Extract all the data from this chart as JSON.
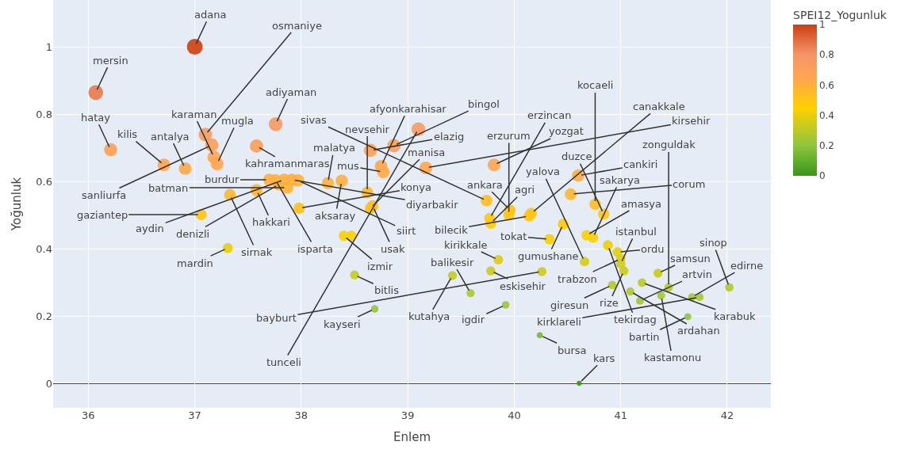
{
  "chart_data": {
    "type": "bubble",
    "xlabel": "Enlem",
    "ylabel": "Yoğunluk",
    "clabel": "SPEI12_Yogunluk",
    "xlim": [
      35.67,
      42.41
    ],
    "xticks": [
      36,
      37,
      38,
      39,
      40,
      41,
      42
    ],
    "ylim": [
      -0.073,
      1.139
    ],
    "yticks": [
      0,
      0.2,
      0.4,
      0.6,
      0.8,
      1
    ],
    "clim": [
      0,
      1
    ],
    "cticks": [
      0,
      0.2,
      0.4,
      0.6,
      0.8,
      1
    ],
    "grid": true,
    "ref_lines": [
      {
        "axis": "y",
        "value": 0,
        "color": "#444444"
      }
    ],
    "x": [
      37.0,
      36.07,
      36.21,
      36.71,
      36.91,
      37.1,
      37.16,
      37.18,
      37.21,
      37.06,
      37.33,
      37.31,
      37.58,
      37.76,
      37.58,
      37.7,
      37.76,
      37.79,
      37.84,
      37.87,
      37.91,
      37.97,
      37.98,
      38.25,
      38.38,
      38.65,
      38.75,
      38.77,
      38.87,
      39.1,
      39.17,
      38.62,
      38.67,
      38.65,
      38.4,
      38.47,
      38.5,
      38.69,
      39.42,
      39.59,
      39.78,
      39.85,
      39.92,
      39.81,
      39.74,
      39.77,
      39.78,
      39.96,
      39.95,
      40.14,
      40.16,
      40.24,
      40.26,
      40.33,
      40.46,
      40.53,
      40.6,
      40.61,
      40.76,
      40.84,
      40.74,
      40.68,
      40.66,
      40.88,
      40.97,
      41.0,
      41.0,
      41.03,
      40.92,
      41.09,
      41.18,
      41.2,
      41.35,
      41.38,
      41.45,
      41.63,
      41.67,
      41.74,
      42.02
    ],
    "values": [
      1.0,
      0.864,
      0.694,
      0.649,
      0.638,
      0.739,
      0.708,
      0.672,
      0.652,
      0.501,
      0.56,
      0.402,
      0.705,
      0.77,
      0.574,
      0.605,
      0.603,
      0.591,
      0.605,
      0.581,
      0.605,
      0.603,
      0.52,
      0.595,
      0.602,
      0.692,
      0.645,
      0.628,
      0.706,
      0.755,
      0.64,
      0.567,
      0.527,
      0.52,
      0.438,
      0.438,
      0.322,
      0.221,
      0.32,
      0.268,
      0.334,
      0.367,
      0.233,
      0.649,
      0.543,
      0.49,
      0.475,
      0.515,
      0.5,
      0.497,
      0.505,
      0.143,
      0.332,
      0.428,
      0.473,
      0.562,
      0.617,
      0.0,
      0.532,
      0.503,
      0.433,
      0.44,
      0.362,
      0.41,
      0.39,
      0.37,
      0.355,
      0.334,
      0.292,
      0.273,
      0.245,
      0.299,
      0.327,
      0.261,
      0.285,
      0.198,
      0.256,
      0.256,
      0.285
    ],
    "cvalues": [
      1.0,
      0.864,
      0.694,
      0.649,
      0.638,
      0.739,
      0.708,
      0.672,
      0.652,
      0.501,
      0.56,
      0.402,
      0.705,
      0.77,
      0.574,
      0.605,
      0.603,
      0.591,
      0.605,
      0.581,
      0.605,
      0.603,
      0.52,
      0.595,
      0.602,
      0.692,
      0.645,
      0.628,
      0.706,
      0.755,
      0.64,
      0.567,
      0.527,
      0.52,
      0.438,
      0.438,
      0.322,
      0.221,
      0.32,
      0.268,
      0.334,
      0.367,
      0.233,
      0.649,
      0.543,
      0.49,
      0.475,
      0.515,
      0.5,
      0.497,
      0.505,
      0.143,
      0.332,
      0.428,
      0.473,
      0.562,
      0.617,
      0.0,
      0.532,
      0.503,
      0.433,
      0.44,
      0.362,
      0.41,
      0.39,
      0.37,
      0.355,
      0.334,
      0.292,
      0.273,
      0.245,
      0.299,
      0.327,
      0.261,
      0.285,
      0.198,
      0.256,
      0.256,
      0.285
    ],
    "sizes": [
      1.0,
      0.864,
      0.694,
      0.649,
      0.638,
      0.739,
      0.708,
      0.672,
      0.652,
      0.501,
      0.56,
      0.402,
      0.705,
      0.77,
      0.574,
      0.605,
      0.603,
      0.591,
      0.605,
      0.581,
      0.605,
      0.603,
      0.52,
      0.595,
      0.602,
      0.692,
      0.645,
      0.628,
      0.706,
      0.755,
      0.64,
      0.567,
      0.527,
      0.52,
      0.438,
      0.438,
      0.322,
      0.221,
      0.32,
      0.268,
      0.334,
      0.367,
      0.233,
      0.649,
      0.543,
      0.49,
      0.475,
      0.515,
      0.5,
      0.497,
      0.505,
      0.143,
      0.332,
      0.428,
      0.473,
      0.562,
      0.617,
      0.1,
      0.532,
      0.503,
      0.433,
      0.44,
      0.362,
      0.41,
      0.39,
      0.37,
      0.355,
      0.334,
      0.292,
      0.273,
      0.245,
      0.299,
      0.327,
      0.261,
      0.285,
      0.198,
      0.256,
      0.256,
      0.285
    ],
    "annotations": [
      {
        "text": "adana",
        "x": 37.0,
        "y": 1.0
      },
      {
        "text": "mersin",
        "x": 36.07,
        "y": 0.864
      },
      {
        "text": "hatay",
        "x": 36.21,
        "y": 0.694
      },
      {
        "text": "kilis",
        "x": 36.71,
        "y": 0.649
      },
      {
        "text": "antalya",
        "x": 36.91,
        "y": 0.638
      },
      {
        "text": "osmaniye",
        "x": 37.1,
        "y": 0.739
      },
      {
        "text": "sanliurfa",
        "x": 37.16,
        "y": 0.708
      },
      {
        "text": "karaman",
        "x": 37.18,
        "y": 0.672
      },
      {
        "text": "mugla",
        "x": 37.21,
        "y": 0.652
      },
      {
        "text": "gaziantep",
        "x": 37.06,
        "y": 0.501
      },
      {
        "text": "sirnak",
        "x": 37.33,
        "y": 0.56
      },
      {
        "text": "mardin",
        "x": 37.31,
        "y": 0.402
      },
      {
        "text": "kahramanmaras",
        "x": 37.58,
        "y": 0.705
      },
      {
        "text": "adiyaman",
        "x": 37.76,
        "y": 0.77
      },
      {
        "text": "hakkari",
        "x": 37.58,
        "y": 0.574
      },
      {
        "text": "burdur",
        "x": 37.7,
        "y": 0.605
      },
      {
        "text": "isparta",
        "x": 37.76,
        "y": 0.603
      },
      {
        "text": "denizli",
        "x": 37.79,
        "y": 0.591
      },
      {
        "text": "aydin",
        "x": 37.84,
        "y": 0.605
      },
      {
        "text": "batman",
        "x": 37.87,
        "y": 0.581
      },
      {
        "text": "diyarbakir",
        "x": 37.91,
        "y": 0.605
      },
      {
        "text": "siirt",
        "x": 37.97,
        "y": 0.603
      },
      {
        "text": "konya",
        "x": 37.98,
        "y": 0.52
      },
      {
        "text": "malatya",
        "x": 38.25,
        "y": 0.595
      },
      {
        "text": "aksaray",
        "x": 38.38,
        "y": 0.602
      },
      {
        "text": "elazig",
        "x": 38.65,
        "y": 0.692
      },
      {
        "text": "afyonkarahisar",
        "x": 38.75,
        "y": 0.645
      },
      {
        "text": "mus",
        "x": 38.77,
        "y": 0.628
      },
      {
        "text": "bingol",
        "x": 38.87,
        "y": 0.706
      },
      {
        "text": "tunceli",
        "x": 39.1,
        "y": 0.755
      },
      {
        "text": "kirsehir",
        "x": 39.17,
        "y": 0.64
      },
      {
        "text": "nevsehir",
        "x": 38.62,
        "y": 0.567
      },
      {
        "text": "usak",
        "x": 38.67,
        "y": 0.527
      },
      {
        "text": "manisa",
        "x": 38.65,
        "y": 0.52
      },
      {
        "text": "izmir",
        "x": 38.4,
        "y": 0.438
      },
      {
        "text": "bitlis",
        "x": 38.5,
        "y": 0.322
      },
      {
        "text": "kayseri",
        "x": 38.69,
        "y": 0.221
      },
      {
        "text": "kutahya",
        "x": 39.42,
        "y": 0.32
      },
      {
        "text": "balikesir",
        "x": 39.59,
        "y": 0.268
      },
      {
        "text": "eskisehir",
        "x": 39.78,
        "y": 0.334
      },
      {
        "text": "kirikkale",
        "x": 39.85,
        "y": 0.367
      },
      {
        "text": "igdir",
        "x": 39.92,
        "y": 0.233
      },
      {
        "text": "yozgat",
        "x": 39.81,
        "y": 0.649
      },
      {
        "text": "sivas",
        "x": 39.74,
        "y": 0.543
      },
      {
        "text": "erzincan",
        "x": 39.77,
        "y": 0.49
      },
      {
        "text": "agri",
        "x": 39.78,
        "y": 0.475
      },
      {
        "text": "ankara",
        "x": 39.96,
        "y": 0.515
      },
      {
        "text": "erzurum",
        "x": 39.95,
        "y": 0.5
      },
      {
        "text": "bilecik",
        "x": 40.14,
        "y": 0.497
      },
      {
        "text": "canakkale",
        "x": 40.16,
        "y": 0.505
      },
      {
        "text": "bursa",
        "x": 40.24,
        "y": 0.143
      },
      {
        "text": "bayburt",
        "x": 40.26,
        "y": 0.332
      },
      {
        "text": "tokat",
        "x": 40.33,
        "y": 0.428
      },
      {
        "text": "gumushane",
        "x": 40.46,
        "y": 0.473
      },
      {
        "text": "corum",
        "x": 40.53,
        "y": 0.562
      },
      {
        "text": "cankiri",
        "x": 40.6,
        "y": 0.617
      },
      {
        "text": "kars",
        "x": 40.61,
        "y": 0.0
      },
      {
        "text": "kocaeli",
        "x": 40.76,
        "y": 0.532
      },
      {
        "text": "duzce",
        "x": 40.84,
        "y": 0.503
      },
      {
        "text": "sakarya",
        "x": 40.74,
        "y": 0.433
      },
      {
        "text": "amasya",
        "x": 40.68,
        "y": 0.44
      },
      {
        "text": "yalova",
        "x": 40.66,
        "y": 0.362
      },
      {
        "text": "tekirdag",
        "x": 40.88,
        "y": 0.41
      },
      {
        "text": "ordu",
        "x": 40.97,
        "y": 0.39
      },
      {
        "text": "trabzon",
        "x": 41.0,
        "y": 0.37
      },
      {
        "text": "istanbul",
        "x": 41.0,
        "y": 0.355
      },
      {
        "text": "rize",
        "x": 41.03,
        "y": 0.334
      },
      {
        "text": "giresun",
        "x": 40.92,
        "y": 0.292
      },
      {
        "text": "ardahan",
        "x": 41.09,
        "y": 0.273
      },
      {
        "text": "artvin",
        "x": 41.18,
        "y": 0.245
      },
      {
        "text": "karabuk",
        "x": 41.2,
        "y": 0.299
      },
      {
        "text": "samsun",
        "x": 41.35,
        "y": 0.327
      },
      {
        "text": "kastamonu",
        "x": 41.38,
        "y": 0.261
      },
      {
        "text": "zonguldak",
        "x": 41.45,
        "y": 0.285
      },
      {
        "text": "bartin",
        "x": 41.63,
        "y": 0.198
      },
      {
        "text": "edirne",
        "x": 41.67,
        "y": 0.256
      },
      {
        "text": "kirklareli",
        "x": 41.74,
        "y": 0.256
      },
      {
        "text": "sinop",
        "x": 42.02,
        "y": 0.285
      }
    ]
  }
}
